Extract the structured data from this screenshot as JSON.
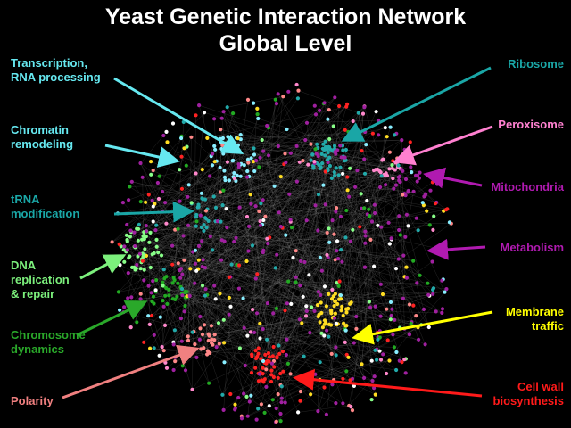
{
  "title": {
    "line1": "Yeast Genetic Interaction Network",
    "line2": "Global Level"
  },
  "labels": {
    "transcription": {
      "text": "Transcription,\nRNA processing",
      "color": "#66e8f0"
    },
    "chromatin": {
      "text": "Chromatin\nremodeling",
      "color": "#66e8f0"
    },
    "trna": {
      "text": "tRNA\nmodification",
      "color": "#1aa6a6"
    },
    "dna": {
      "text": "DNA\nreplication\n& repair",
      "color": "#7cf07c"
    },
    "chromosome": {
      "text": "Chromosome\ndynamics",
      "color": "#2aa82a"
    },
    "polarity": {
      "text": "Polarity",
      "color": "#f08080"
    },
    "ribosome": {
      "text": "Ribosome",
      "color": "#1aa6a6"
    },
    "peroxisome": {
      "text": "Peroxisome",
      "color": "#ff80d0"
    },
    "mitochondria": {
      "text": "Mitochondria",
      "color": "#b01ab0"
    },
    "metabolism": {
      "text": "Metabolism",
      "color": "#b01ab0"
    },
    "membrane": {
      "text": "Membrane\ntraffic",
      "color": "#ffff00"
    },
    "cellwall": {
      "text": "Cell wall\nbiosynthesis",
      "color": "#ff1a1a"
    }
  },
  "node_colors": [
    "#a020a0",
    "#22aaaa",
    "#ffffff",
    "#ffdd22",
    "#88ff88",
    "#ff8888",
    "#ff2222",
    "#ff88cc",
    "#88eeff",
    "#22aa22"
  ]
}
